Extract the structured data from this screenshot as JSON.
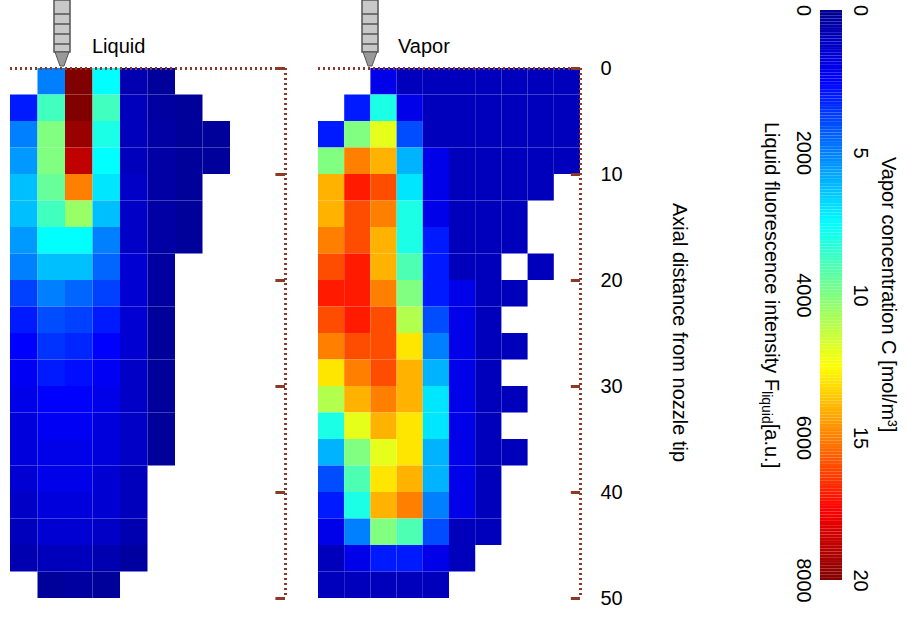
{
  "chart_data": [
    {
      "type": "heatmap",
      "title": "Liquid",
      "ylim": [
        0,
        50
      ],
      "yticks": [
        0,
        10,
        20,
        30,
        40,
        50
      ],
      "tick_labels": false,
      "y_bins": [
        0,
        2.5,
        5,
        7.5,
        10,
        12.5,
        15,
        17.5,
        20,
        22.5,
        25,
        27.5,
        30,
        32.5,
        35,
        37.5,
        40,
        42.5,
        45,
        47.5,
        50
      ],
      "cells": [
        [
          null,
          2000,
          8000,
          3000,
          300,
          100,
          null,
          null,
          null,
          null
        ],
        [
          1200,
          3500,
          8000,
          3500,
          400,
          150,
          100,
          null,
          null,
          null
        ],
        [
          2000,
          4000,
          7800,
          3200,
          400,
          200,
          100,
          100,
          null,
          null
        ],
        [
          2200,
          4000,
          7500,
          3000,
          400,
          200,
          100,
          100,
          null,
          null
        ],
        [
          2500,
          3800,
          6000,
          2800,
          500,
          200,
          100,
          null,
          null,
          null
        ],
        [
          2500,
          3500,
          4200,
          2500,
          500,
          200,
          100,
          null,
          null,
          null
        ],
        [
          2200,
          3000,
          3000,
          2000,
          500,
          200,
          100,
          null,
          null,
          null
        ],
        [
          2000,
          2500,
          2500,
          1800,
          600,
          150,
          null,
          null,
          null,
          null
        ],
        [
          1500,
          2000,
          1800,
          1500,
          600,
          150,
          null,
          null,
          null,
          null
        ],
        [
          1200,
          1600,
          1500,
          1200,
          600,
          100,
          null,
          null,
          null,
          null
        ],
        [
          1000,
          1400,
          1300,
          1000,
          600,
          100,
          null,
          null,
          null,
          null
        ],
        [
          900,
          1200,
          1100,
          900,
          500,
          100,
          null,
          null,
          null,
          null
        ],
        [
          800,
          1000,
          1000,
          800,
          500,
          100,
          null,
          null,
          null,
          null
        ],
        [
          700,
          900,
          900,
          700,
          500,
          100,
          null,
          null,
          null,
          null
        ],
        [
          700,
          800,
          800,
          700,
          500,
          100,
          null,
          null,
          null,
          null
        ],
        [
          600,
          800,
          800,
          600,
          400,
          null,
          null,
          null,
          null,
          null
        ],
        [
          500,
          700,
          700,
          600,
          400,
          null,
          null,
          null,
          null,
          null
        ],
        [
          400,
          600,
          600,
          500,
          300,
          null,
          null,
          null,
          null,
          null
        ],
        [
          300,
          400,
          400,
          300,
          150,
          null,
          null,
          null,
          null,
          null
        ],
        [
          null,
          100,
          150,
          100,
          null,
          null,
          null,
          null,
          null,
          null
        ]
      ],
      "colorbar": {
        "label": [
          {
            "text": "Liquid fluorescence intensity F"
          },
          {
            "text": "liquid",
            "subscript": true
          },
          {
            "text": "[a.u.]"
          }
        ],
        "range": [
          0,
          8000
        ],
        "ticks": [
          0,
          2000,
          4000,
          6000,
          8000
        ]
      }
    },
    {
      "type": "heatmap",
      "title": "Vapor",
      "ylabel": "Axial distance from nozzle tip",
      "ylim": [
        0,
        50
      ],
      "yticks": [
        0,
        10,
        20,
        30,
        40,
        50
      ],
      "tick_labels": "y",
      "y_bins": [
        0,
        2.5,
        5,
        7.5,
        10,
        12.5,
        15,
        17.5,
        20,
        22.5,
        25,
        27.5,
        30,
        32.5,
        35,
        37.5,
        40,
        42.5,
        45,
        47.5,
        50
      ],
      "cells": [
        [
          null,
          null,
          2,
          1,
          1,
          1,
          1,
          1,
          1,
          1
        ],
        [
          null,
          3,
          8,
          2,
          1,
          1,
          1,
          1,
          1,
          1
        ],
        [
          3,
          10,
          12,
          4,
          1,
          1,
          1,
          1,
          1,
          1
        ],
        [
          10,
          15,
          14,
          6,
          2,
          1,
          1,
          1,
          1,
          1
        ],
        [
          14,
          17,
          16,
          7,
          2,
          1,
          1,
          1,
          1,
          null
        ],
        [
          14,
          16,
          15,
          8,
          2,
          1,
          1,
          1,
          null,
          null
        ],
        [
          15,
          16,
          14,
          8,
          3,
          1,
          1,
          1,
          null,
          null
        ],
        [
          16,
          17,
          14,
          9,
          3,
          1,
          1,
          null,
          1,
          null
        ],
        [
          17,
          17,
          15,
          10,
          3,
          2,
          1,
          1,
          null,
          null
        ],
        [
          16,
          17,
          16,
          11,
          4,
          2,
          1,
          null,
          null,
          null
        ],
        [
          15,
          16,
          16,
          13,
          5,
          2,
          1,
          1,
          null,
          null
        ],
        [
          13,
          15,
          16,
          14,
          6,
          2,
          1,
          null,
          null,
          null
        ],
        [
          11,
          14,
          15,
          14,
          7,
          2,
          1,
          1,
          null,
          null
        ],
        [
          8,
          12,
          14,
          13,
          7,
          2,
          1,
          null,
          null,
          null
        ],
        [
          6,
          10,
          12,
          13,
          6,
          2,
          1,
          1,
          null,
          null
        ],
        [
          4,
          9,
          13,
          14,
          6,
          2,
          1,
          null,
          null,
          null
        ],
        [
          3,
          8,
          14,
          15,
          5,
          2,
          1,
          null,
          null,
          null
        ],
        [
          2,
          5,
          10,
          9,
          4,
          1,
          1,
          null,
          null,
          null
        ],
        [
          1,
          2,
          3,
          3,
          2,
          1,
          null,
          null,
          null,
          null
        ],
        [
          1,
          1,
          1,
          1,
          1,
          null,
          null,
          null,
          null,
          null
        ]
      ],
      "colorbar": {
        "label": [
          {
            "text": "Vapor concentration C [mol/m³]"
          }
        ],
        "range": [
          0,
          20
        ],
        "ticks": [
          0,
          5,
          10,
          15,
          20
        ]
      }
    }
  ]
}
